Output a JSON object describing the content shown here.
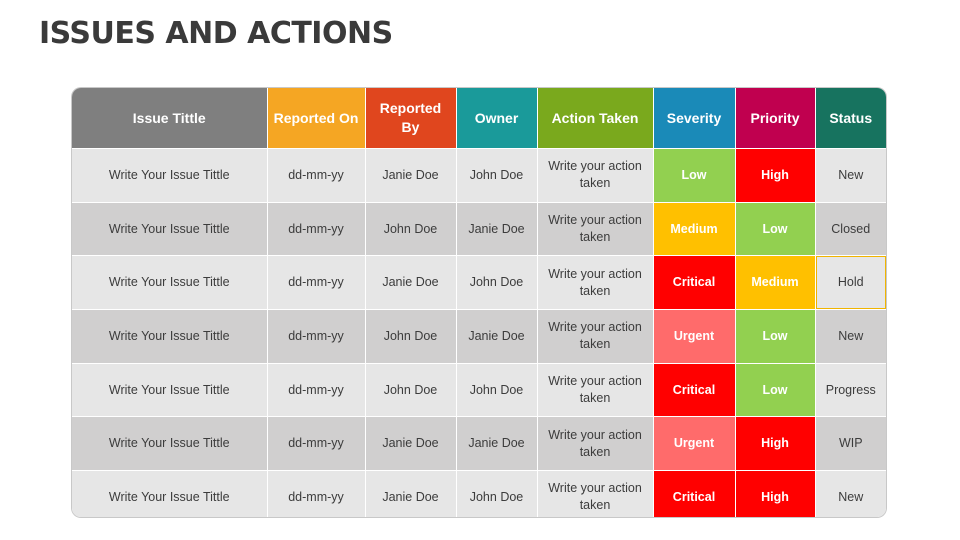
{
  "page": {
    "title": "ISSUES AND ACTIONS"
  },
  "colors": {
    "issue_title_header": "#7f7f7f",
    "reported_on_header": "#f5a623",
    "reported_by_header": "#e0461e",
    "owner_header": "#1a9a9a",
    "action_taken_header": "#7aa91d",
    "severity_header": "#1a8ab8",
    "priority_header": "#c0004f",
    "status_header": "#17735f",
    "low": "#92d050",
    "medium": "#ffc000",
    "high": "#ff0000",
    "critical": "#ff0000",
    "urgent": "#ff6b6b",
    "row_light": "#e6e6e6",
    "row_dark": "#d0cfcf"
  },
  "table": {
    "headers": [
      {
        "label": "Issue Tittle",
        "color": "#7f7f7f"
      },
      {
        "label": "Reported On",
        "color": "#f5a623"
      },
      {
        "label": "Reported By",
        "color": "#e0461e"
      },
      {
        "label": "Owner",
        "color": "#1a9a9a"
      },
      {
        "label": "Action Taken",
        "color": "#7aa91d"
      },
      {
        "label": "Severity",
        "color": "#1a8ab8"
      },
      {
        "label": "Priority",
        "color": "#c0004f"
      },
      {
        "label": "Status",
        "color": "#17735f"
      }
    ],
    "rows": [
      {
        "issue": "Write Your Issue Tittle",
        "reported_on": "dd-mm-yy",
        "reported_by": "Janie Doe",
        "owner": "John Doe",
        "action": "Write your action taken",
        "severity": "Low",
        "priority": "High",
        "status": "New"
      },
      {
        "issue": "Write Your Issue Tittle",
        "reported_on": "dd-mm-yy",
        "reported_by": "John Doe",
        "owner": "Janie Doe",
        "action": "Write your action taken",
        "severity": "Medium",
        "priority": "Low",
        "status": "Closed"
      },
      {
        "issue": "Write Your Issue Tittle",
        "reported_on": "dd-mm-yy",
        "reported_by": "Janie Doe",
        "owner": "John Doe",
        "action": "Write your action taken",
        "severity": "Critical",
        "priority": "Medium",
        "status": "Hold"
      },
      {
        "issue": "Write Your Issue Tittle",
        "reported_on": "dd-mm-yy",
        "reported_by": "John Doe",
        "owner": "Janie Doe",
        "action": "Write your action taken",
        "severity": "Urgent",
        "priority": "Low",
        "status": "New"
      },
      {
        "issue": "Write Your Issue Tittle",
        "reported_on": "dd-mm-yy",
        "reported_by": "John Doe",
        "owner": "John Doe",
        "action": "Write your action taken",
        "severity": "Critical",
        "priority": "Low",
        "status": "Progress"
      },
      {
        "issue": "Write Your Issue Tittle",
        "reported_on": "dd-mm-yy",
        "reported_by": "Janie Doe",
        "owner": "Janie Doe",
        "action": "Write your action taken",
        "severity": "Urgent",
        "priority": "High",
        "status": "WIP"
      },
      {
        "issue": "Write Your Issue Tittle",
        "reported_on": "dd-mm-yy",
        "reported_by": "Janie Doe",
        "owner": "John Doe",
        "action": "Write your action taken",
        "severity": "Critical",
        "priority": "High",
        "status": "New"
      }
    ]
  }
}
